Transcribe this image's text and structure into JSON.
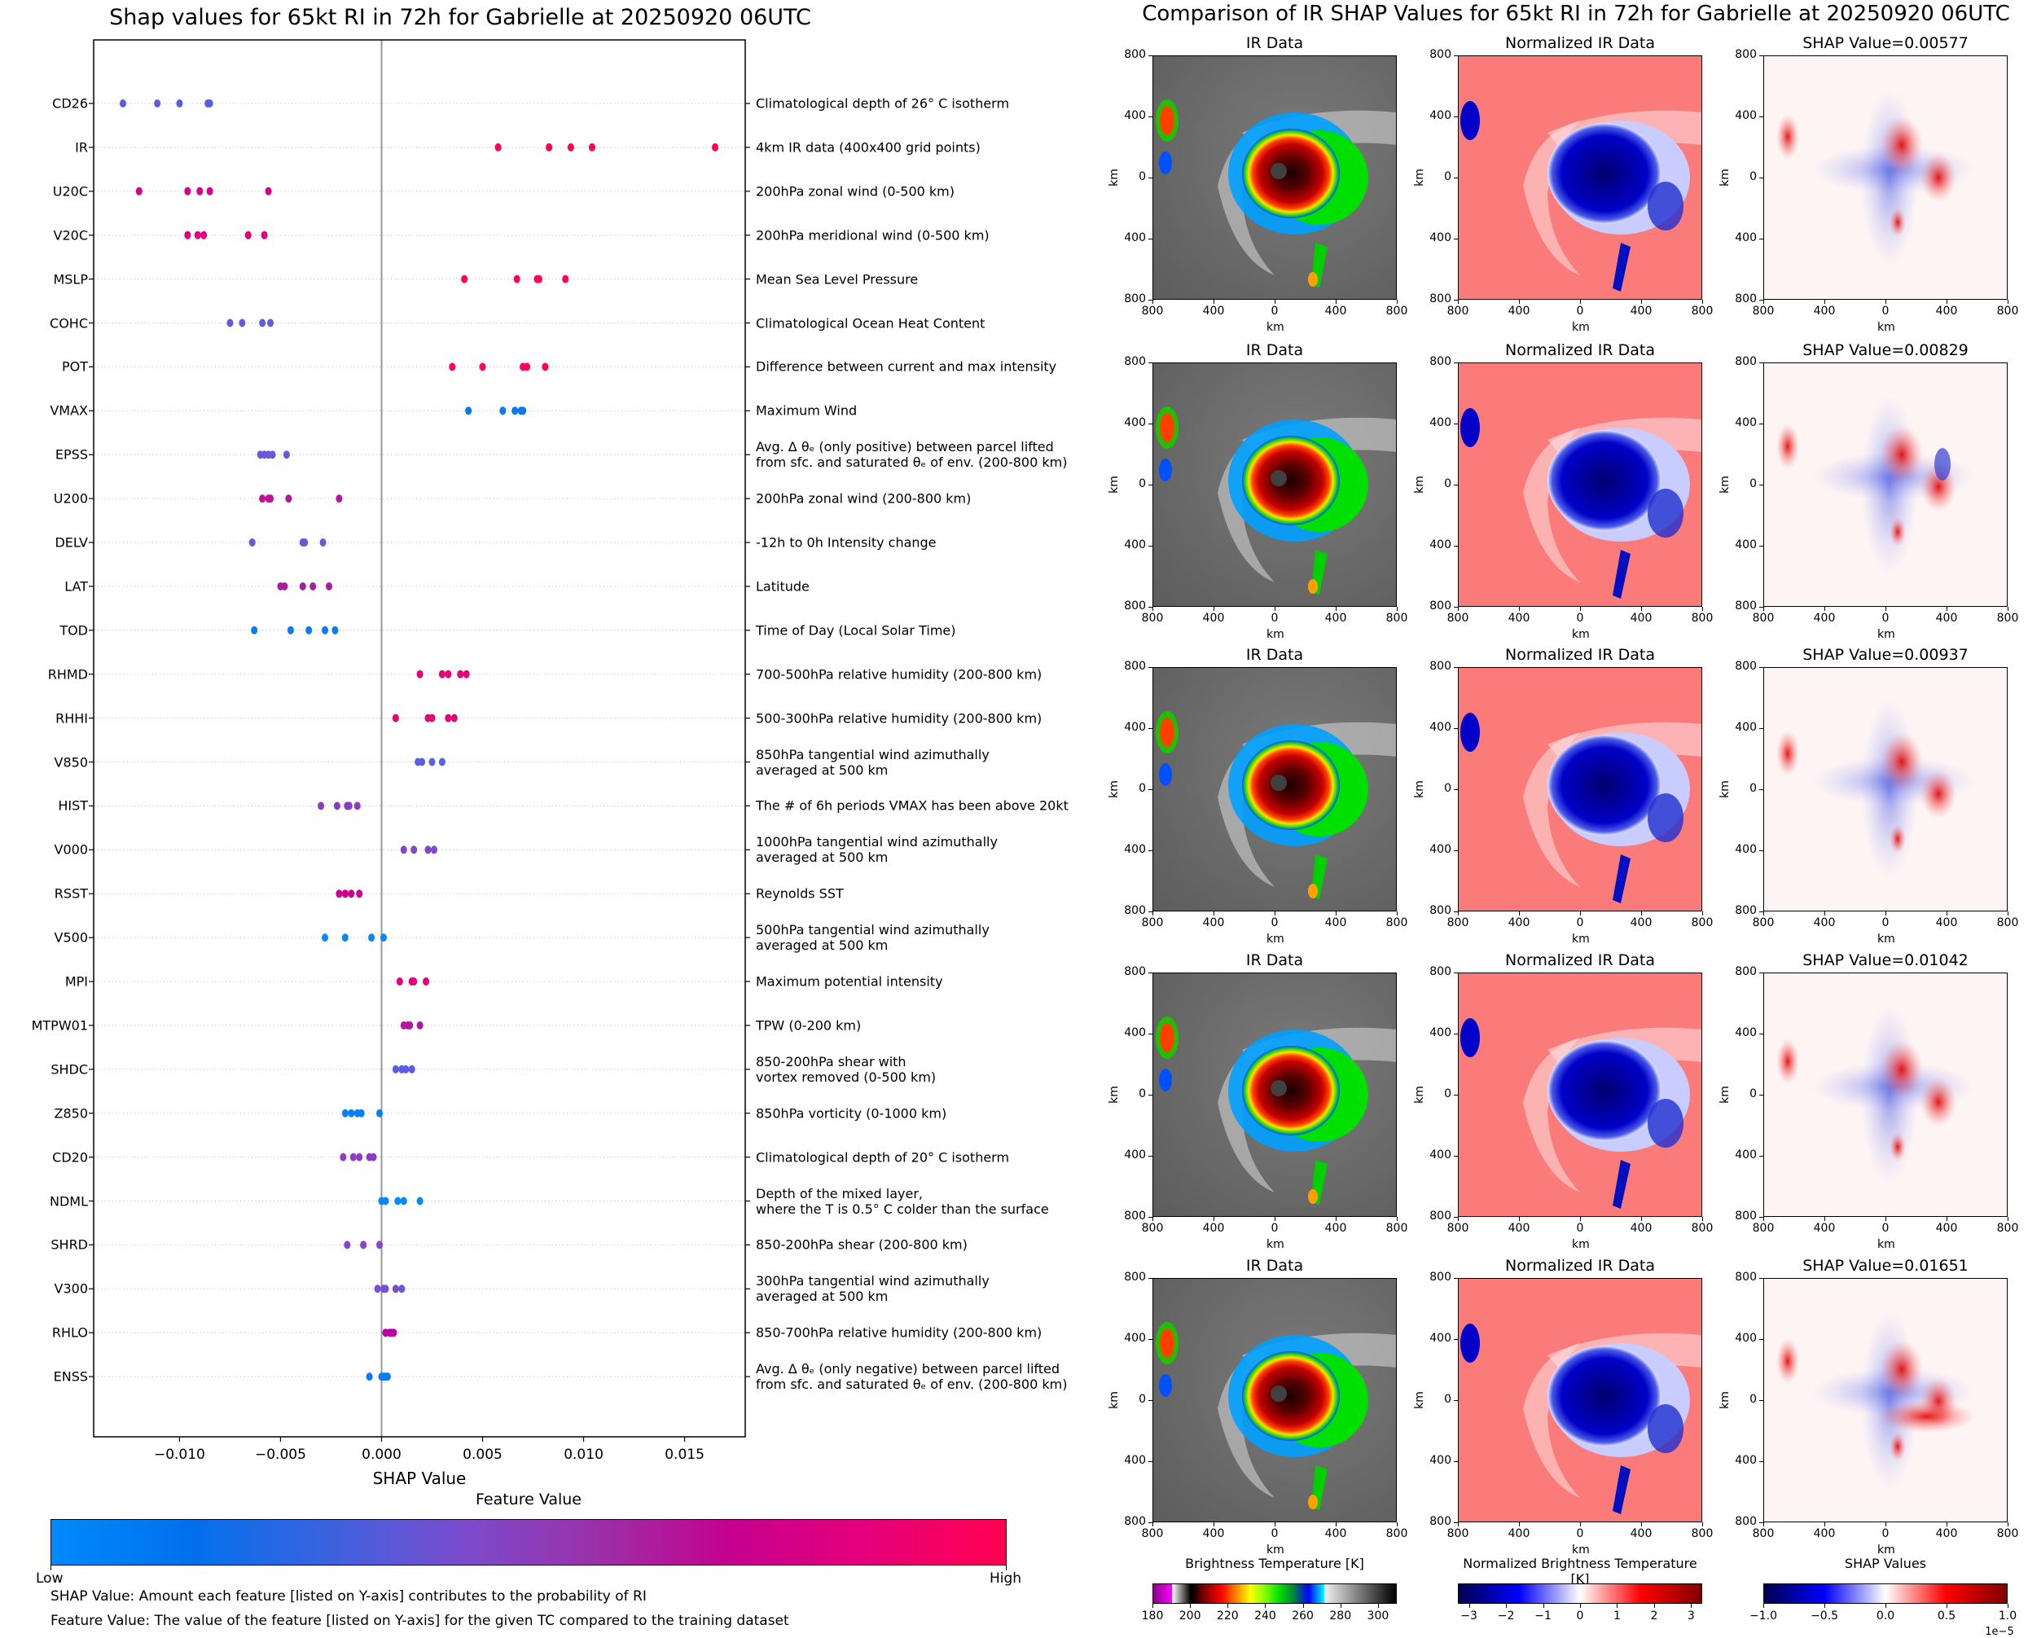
{
  "left_title": "Shap values for 65kt RI in 72h for Gabrielle at 20250920 06UTC",
  "right_title": "Comparison of IR SHAP Values for 65kt RI in 72h for Gabrielle at 20250920 06UTC",
  "chart_data": [
    {
      "type": "scatter",
      "subtype": "beeswarm",
      "title": "Shap values for 65kt RI in 72h for Gabrielle at 20250920 06UTC",
      "xlabel": "SHAP Value",
      "ylabel": "",
      "xlim": [
        -0.01425,
        0.018
      ],
      "xticks": [
        -0.01,
        -0.005,
        0.0,
        0.005,
        0.01,
        0.015
      ],
      "xtick_labels": [
        "−0.010",
        "−0.005",
        "0.000",
        "0.005",
        "0.010",
        "0.015"
      ],
      "grid": "dotted horizontal per feature",
      "zero_line": true,
      "colorbar": {
        "title": "Feature Value",
        "low_label": "Low",
        "high_label": "High",
        "colors": [
          "#008afb",
          "#0070ec",
          "#3a63e0",
          "#7a4ccd",
          "#9b30a8",
          "#c6008e",
          "#e6007a",
          "#ff0051"
        ]
      },
      "features": [
        {
          "name": "CD26",
          "description": "Climatological depth of 26° C isotherm",
          "color": "#5b5de0",
          "values": [
            -0.0128,
            -0.0111,
            -0.01,
            -0.0086,
            -0.0085
          ]
        },
        {
          "name": "IR",
          "description": "4km IR data (400x400 grid points)",
          "color": "#ff0057",
          "values": [
            0.00577,
            0.00829,
            0.00937,
            0.01042,
            0.01651
          ]
        },
        {
          "name": "U20C",
          "description": "200hPa zonal wind (0-500 km)",
          "color": "#d4008a",
          "values": [
            -0.012,
            -0.0096,
            -0.009,
            -0.0085,
            -0.0056
          ]
        },
        {
          "name": "V20C",
          "description": "200hPa meridional wind (0-500 km)",
          "color": "#e0007e",
          "values": [
            -0.0096,
            -0.0091,
            -0.0088,
            -0.0066,
            -0.0058
          ]
        },
        {
          "name": "MSLP",
          "description": "Mean Sea Level Pressure",
          "color": "#ff005a",
          "values": [
            0.0041,
            0.0067,
            0.0077,
            0.0078,
            0.0091
          ]
        },
        {
          "name": "COHC",
          "description": "Climatological Ocean Heat Content",
          "color": "#5e5ce0",
          "values": [
            -0.0075,
            -0.0069,
            -0.0059,
            -0.0055
          ]
        },
        {
          "name": "POT",
          "description": "Difference between current and max intensity",
          "color": "#ff0065",
          "values": [
            0.0035,
            0.005,
            0.007,
            0.0072,
            0.0081
          ]
        },
        {
          "name": "VMAX",
          "description": "Maximum Wind",
          "color": "#0a78f0",
          "values": [
            0.0043,
            0.006,
            0.0066,
            0.0069,
            0.007
          ]
        },
        {
          "name": "EPSS",
          "description": "Avg. Δ θₑ (only positive) between parcel lifted\nfrom sfc. and saturated θₑ of env. (200-800 km)",
          "color": "#6a58da",
          "values": [
            -0.006,
            -0.0058,
            -0.0056,
            -0.0054,
            -0.0047
          ]
        },
        {
          "name": "U200",
          "description": "200hPa zonal wind (200-800 km)",
          "color": "#b8149a",
          "values": [
            -0.0059,
            -0.0056,
            -0.0055,
            -0.0046,
            -0.0021
          ]
        },
        {
          "name": "DELV",
          "description": "-12h to 0h Intensity change",
          "color": "#7155d8",
          "values": [
            -0.0064,
            -0.0039,
            -0.0038,
            -0.0029
          ]
        },
        {
          "name": "LAT",
          "description": "Latitude",
          "color": "#a81ea2",
          "values": [
            -0.005,
            -0.0048,
            -0.0039,
            -0.0034,
            -0.0026
          ]
        },
        {
          "name": "TOD",
          "description": "Time of Day (Local Solar Time)",
          "color": "#0a7df2",
          "values": [
            -0.0063,
            -0.0045,
            -0.0036,
            -0.0028,
            -0.0023
          ]
        },
        {
          "name": "RHMD",
          "description": "700-500hPa relative humidity (200-800 km)",
          "color": "#e8007a",
          "values": [
            0.0019,
            0.003,
            0.0033,
            0.0039,
            0.0042
          ]
        },
        {
          "name": "RHHI",
          "description": "500-300hPa relative humidity (200-800 km)",
          "color": "#e60078",
          "values": [
            0.0007,
            0.0023,
            0.0025,
            0.0033,
            0.0036
          ]
        },
        {
          "name": "V850",
          "description": "850hPa tangential wind azimuthally\naveraged at 500 km",
          "color": "#5b60e0",
          "values": [
            0.0018,
            0.002,
            0.0025,
            0.003
          ]
        },
        {
          "name": "HIST",
          "description": "The # of 6h periods VMAX has been above 20kt",
          "color": "#8c3cc0",
          "values": [
            -0.003,
            -0.0022,
            -0.0017,
            -0.0016,
            -0.0012
          ]
        },
        {
          "name": "V000",
          "description": "1000hPa tangential wind azimuthally\naveraged at 500 km",
          "color": "#8246c8",
          "values": [
            0.0011,
            0.0016,
            0.0023,
            0.0026
          ]
        },
        {
          "name": "RSST",
          "description": "Reynolds SST",
          "color": "#cc0090",
          "values": [
            -0.0021,
            -0.0018,
            -0.0018,
            -0.0015,
            -0.0011
          ]
        },
        {
          "name": "V500",
          "description": "500hPa tangential wind azimuthally\naveraged at 500 km",
          "color": "#0a86f5",
          "values": [
            -0.0028,
            -0.0018,
            -0.0005,
            0.0001
          ]
        },
        {
          "name": "MPI",
          "description": "Maximum potential intensity",
          "color": "#e2007c",
          "values": [
            0.0009,
            0.0015,
            0.0016,
            0.0022
          ]
        },
        {
          "name": "MTPW01",
          "description": "TPW (0-200 km)",
          "color": "#b0189e",
          "values": [
            0.0011,
            0.0013,
            0.0014,
            0.0019
          ]
        },
        {
          "name": "SHDC",
          "description": "850-200hPa shear with\nvortex removed (0-500 km)",
          "color": "#5b5de0",
          "values": [
            0.0007,
            0.001,
            0.0012,
            0.0015
          ]
        },
        {
          "name": "Z850",
          "description": "850hPa vorticity (0-1000 km)",
          "color": "#0a80f3",
          "values": [
            -0.0018,
            -0.0015,
            -0.0012,
            -0.001,
            -0.0001
          ]
        },
        {
          "name": "CD20",
          "description": "Climatological depth of 20° C isotherm",
          "color": "#8c3cc0",
          "values": [
            -0.0019,
            -0.0014,
            -0.0011,
            -0.0006,
            -0.0004
          ]
        },
        {
          "name": "NDML",
          "description": "Depth of the mixed layer,\nwhere the T is 0.5° C colder than the surface",
          "color": "#0a88f6",
          "values": [
            0.0,
            0.0002,
            0.0008,
            0.0011,
            0.0019
          ]
        },
        {
          "name": "SHRD",
          "description": "850-200hPa shear (200-800 km)",
          "color": "#8846c4",
          "values": [
            -0.0017,
            -0.0009,
            -0.0009,
            -0.0001
          ]
        },
        {
          "name": "V300",
          "description": "300hPa tangential wind azimuthally\naveraged at 500 km",
          "color": "#7352d6",
          "values": [
            -0.0002,
            0.0001,
            0.0002,
            0.0007,
            0.001
          ]
        },
        {
          "name": "RHLO",
          "description": "850-700hPa relative humidity (200-800 km)",
          "color": "#b8009e",
          "values": [
            0.0002,
            0.0004,
            0.0005,
            0.0006
          ]
        },
        {
          "name": "ENSS",
          "description": "Avg. Δ θₑ (only negative) between parcel lifted\nfrom sfc. and saturated θₑ of env. (200-800 km)",
          "color": "#0a7cf2",
          "values": [
            -0.0006,
            0.0,
            0.0001,
            0.0002,
            0.0003
          ]
        }
      ]
    },
    {
      "type": "heatmap",
      "title": "Comparison of IR SHAP Values for 65kt RI in 72h for Gabrielle at 20250920 06UTC",
      "columns": [
        "IR Data",
        "Normalized IR Data",
        "SHAP Value"
      ],
      "rows": [
        {
          "shap_value": "0.00577"
        },
        {
          "shap_value": "0.00829"
        },
        {
          "shap_value": "0.00937"
        },
        {
          "shap_value": "0.01042"
        },
        {
          "shap_value": "0.01651"
        }
      ],
      "xlabel": "km",
      "ylabel": "km",
      "xtick_labels": [
        "800",
        "400",
        "0",
        "400",
        "800"
      ],
      "ytick_labels": [
        "800",
        "400",
        "0",
        "400",
        "800"
      ],
      "colorbars": [
        {
          "title": "Brightness Temperature [K]",
          "range": [
            180,
            310
          ],
          "tick_labels": [
            "180",
            "200",
            "220",
            "240",
            "260",
            "280",
            "300"
          ]
        },
        {
          "title": "Normalized Brightness Temperature [K]",
          "range": [
            -3.3,
            3.3
          ],
          "tick_labels": [
            "−3",
            "−2",
            "−1",
            "0",
            "1",
            "2",
            "3"
          ]
        },
        {
          "title": "SHAP Values",
          "range": [
            -1.0,
            1.0
          ],
          "tick_labels": [
            "−1.0",
            "−0.5",
            "0.0",
            "0.5",
            "1.0"
          ],
          "offset_label": "1e−5"
        }
      ]
    }
  ],
  "panel_labels": {
    "ir": "IR Data",
    "norm": "Normalized IR Data",
    "shap_prefix": "SHAP Value=",
    "km": "km"
  },
  "notes": [
    "SHAP Value: Amount each feature [listed on Y-axis] contributes to the probability of RI",
    "Feature Value: The value of the feature [listed on Y-axis] for the given TC compared to the training dataset"
  ]
}
